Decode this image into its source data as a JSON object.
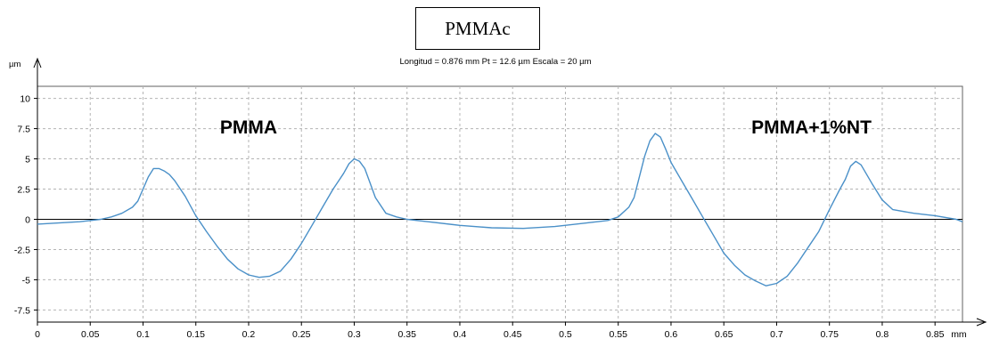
{
  "title": "PMMAc",
  "subtitle": "Longitud = 0.876 mm  Pt = 12.6 µm  Escala = 20 µm",
  "chart_data": {
    "type": "line",
    "ylabel": "µm",
    "xunit": "mm",
    "xlim": [
      0,
      0.876
    ],
    "ylim": [
      -8.5,
      11
    ],
    "grid": true,
    "xticks": [
      0,
      0.05,
      0.1,
      0.15,
      0.2,
      0.25,
      0.3,
      0.35,
      0.4,
      0.45,
      0.5,
      0.55,
      0.6,
      0.65,
      0.7,
      0.75,
      0.8,
      0.85
    ],
    "xtick_labels": [
      "0",
      "0.05",
      "0.1",
      "0.15",
      "0.2",
      "0.25",
      "0.3",
      "0.35",
      "0.4",
      "0.45",
      "0.5",
      "0.55",
      "0.6",
      "0.65",
      "0.7",
      "0.75",
      "0.8",
      "0.85"
    ],
    "yticks": [
      10,
      7.5,
      5,
      2.5,
      0,
      -2.5,
      -5,
      -7.5
    ],
    "ytick_labels": [
      "10",
      "7.5",
      "5",
      "2.5",
      "0",
      "-2.5",
      "-5",
      "-7.5"
    ],
    "annotations": [
      {
        "text": "PMMA",
        "x": 0.2,
        "y": 7.1
      },
      {
        "text": "PMMA+1%NT",
        "x": 0.733,
        "y": 7.1
      }
    ],
    "series": [
      {
        "color": "#4a90c8",
        "x": [
          0,
          0.02,
          0.04,
          0.06,
          0.07,
          0.08,
          0.09,
          0.095,
          0.1,
          0.105,
          0.11,
          0.115,
          0.12,
          0.125,
          0.13,
          0.14,
          0.15,
          0.16,
          0.17,
          0.18,
          0.19,
          0.2,
          0.21,
          0.22,
          0.23,
          0.24,
          0.25,
          0.26,
          0.27,
          0.28,
          0.29,
          0.295,
          0.3,
          0.305,
          0.31,
          0.315,
          0.32,
          0.33,
          0.34,
          0.35,
          0.37,
          0.4,
          0.43,
          0.46,
          0.49,
          0.52,
          0.54,
          0.55,
          0.56,
          0.565,
          0.57,
          0.575,
          0.58,
          0.585,
          0.59,
          0.595,
          0.6,
          0.61,
          0.62,
          0.63,
          0.64,
          0.65,
          0.66,
          0.67,
          0.68,
          0.69,
          0.7,
          0.71,
          0.72,
          0.73,
          0.74,
          0.75,
          0.76,
          0.765,
          0.77,
          0.775,
          0.78,
          0.79,
          0.8,
          0.81,
          0.83,
          0.85,
          0.87,
          0.876
        ],
        "y": [
          -0.4,
          -0.3,
          -0.2,
          0,
          0.2,
          0.5,
          1.0,
          1.5,
          2.5,
          3.5,
          4.2,
          4.2,
          4.0,
          3.7,
          3.2,
          1.9,
          0.3,
          -1.0,
          -2.2,
          -3.3,
          -4.1,
          -4.6,
          -4.8,
          -4.7,
          -4.3,
          -3.3,
          -2.0,
          -0.5,
          1.0,
          2.5,
          3.8,
          4.6,
          5.0,
          4.8,
          4.2,
          3.0,
          1.8,
          0.5,
          0.2,
          0.0,
          -0.2,
          -0.5,
          -0.7,
          -0.75,
          -0.6,
          -0.3,
          -0.1,
          0.2,
          1.0,
          1.8,
          3.5,
          5.2,
          6.5,
          7.1,
          6.8,
          5.8,
          4.7,
          3.2,
          1.7,
          0.2,
          -1.3,
          -2.8,
          -3.8,
          -4.6,
          -5.1,
          -5.5,
          -5.3,
          -4.7,
          -3.6,
          -2.3,
          -1.0,
          0.8,
          2.5,
          3.3,
          4.4,
          4.8,
          4.5,
          3.0,
          1.6,
          0.8,
          0.5,
          0.3,
          0.0,
          -0.2
        ]
      }
    ]
  }
}
